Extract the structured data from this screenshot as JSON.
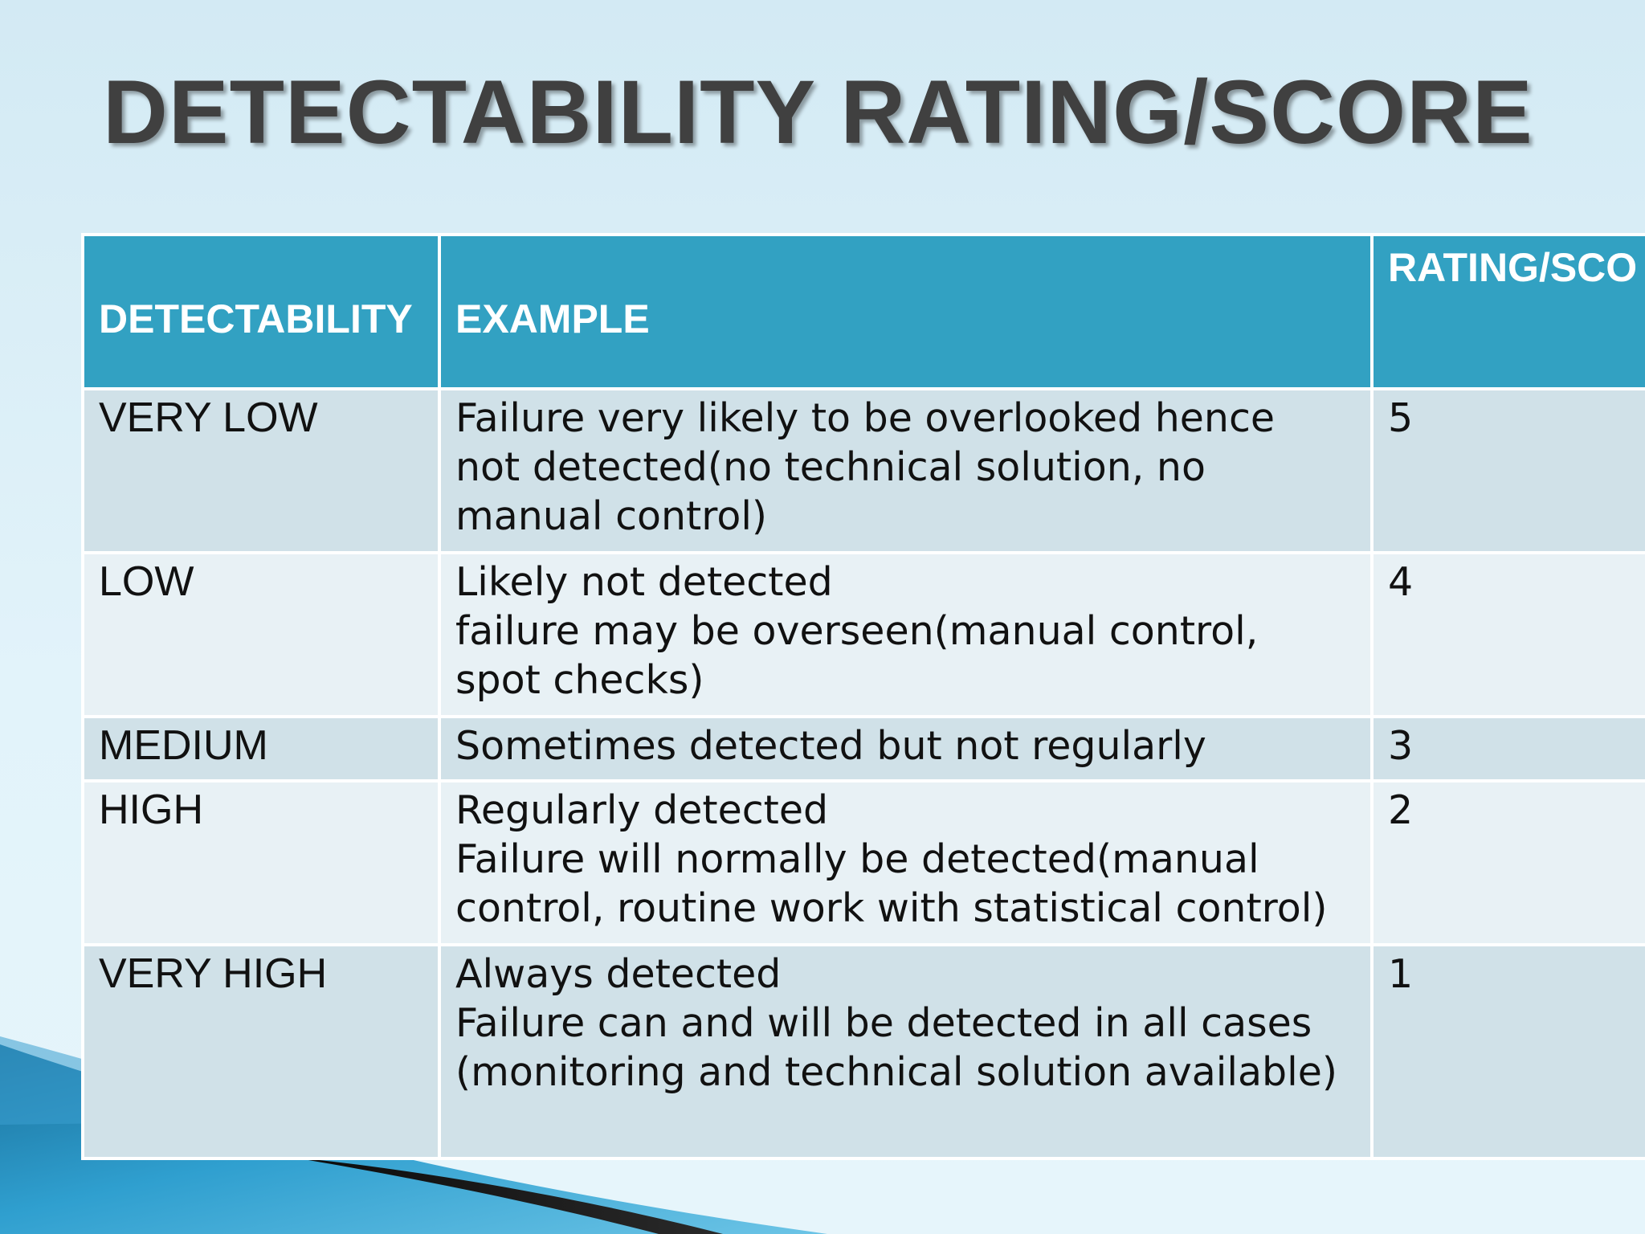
{
  "slide": {
    "title": "DETECTABILITY RATING/SCORE"
  },
  "table": {
    "headers": [
      "DETECTABILITY",
      "EXAMPLE",
      "RATING/SCO"
    ],
    "rows": [
      {
        "detectability": "VERY LOW",
        "example": "Failure very likely to be overlooked hence\nnot detected(no technical solution, no\nmanual control)",
        "rating": "5"
      },
      {
        "detectability": "LOW",
        "example": "Likely not detected\nfailure may be overseen(manual control,\nspot checks)",
        "rating": "4"
      },
      {
        "detectability": "MEDIUM",
        "example": "Sometimes detected but not regularly",
        "rating": "3"
      },
      {
        "detectability": "HIGH",
        "example": "Regularly detected\nFailure will normally be detected(manual\ncontrol, routine work with statistical control)",
        "rating": "2"
      },
      {
        "detectability": "VERY HIGH",
        "example": "Always detected\nFailure can and will be detected in all cases\n(monitoring and technical solution available)",
        "rating": "1"
      }
    ]
  },
  "colors": {
    "header_bg": "#32a1c2",
    "header_text": "#ffffff",
    "row_dark": "#d0e1e8",
    "row_light": "#e8f1f5",
    "title_text": "#404040",
    "accent_blue": "#1e8fc0"
  }
}
